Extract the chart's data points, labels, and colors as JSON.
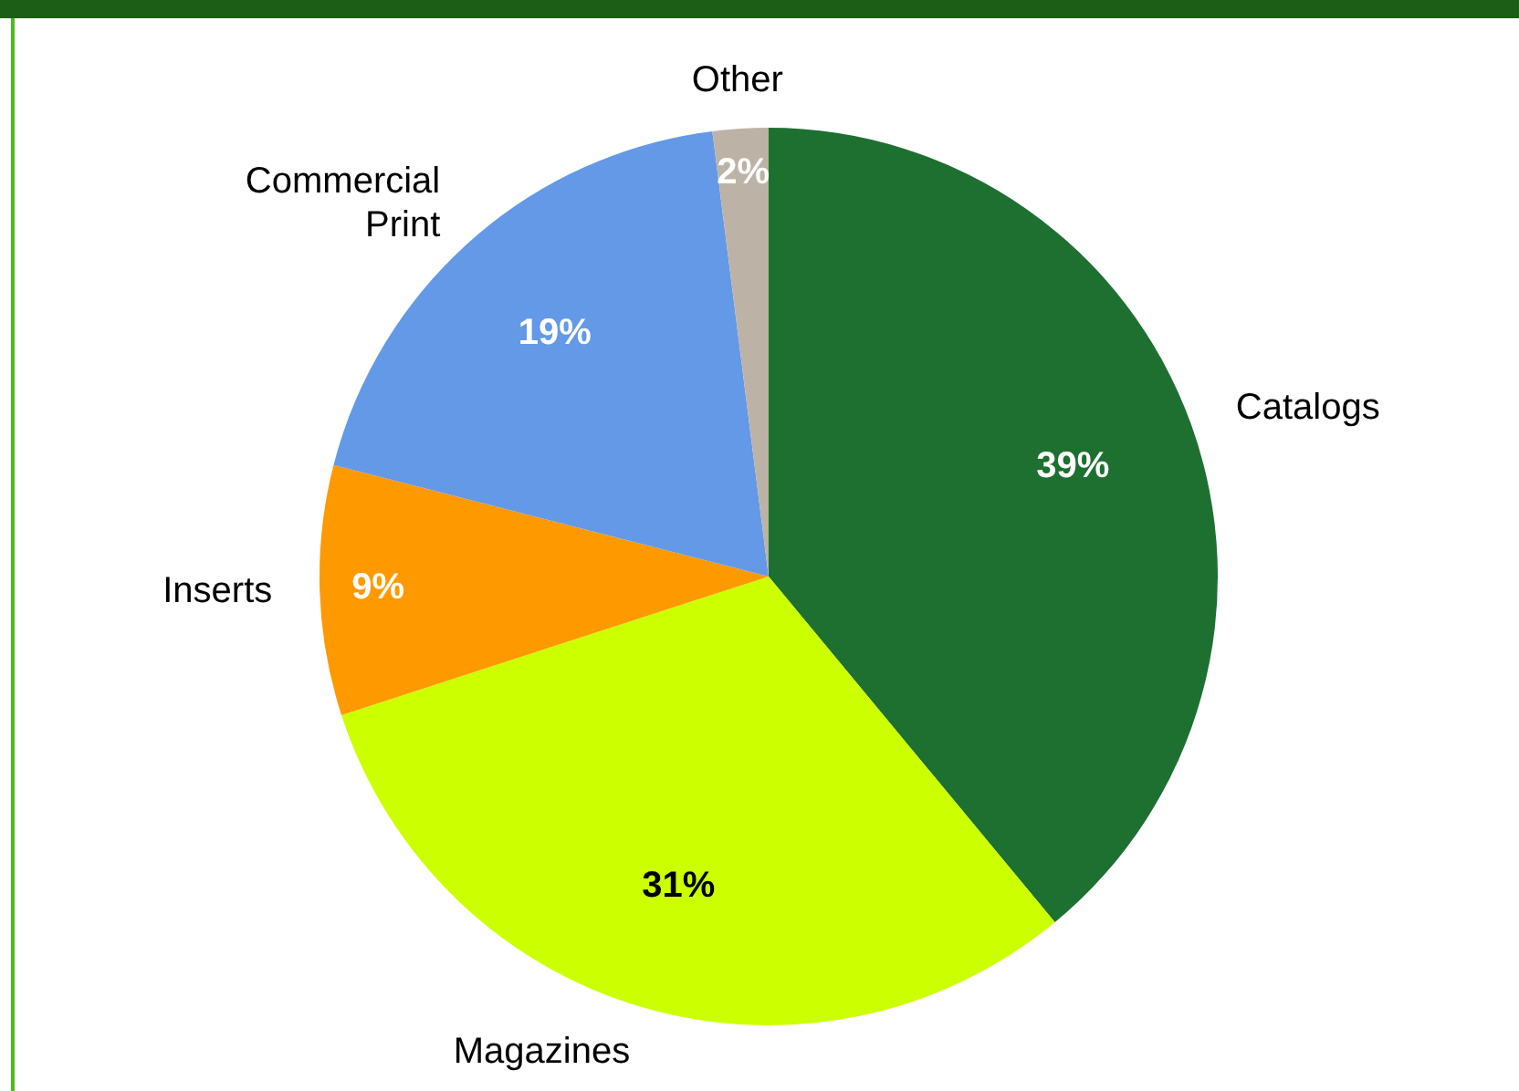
{
  "chart_data": {
    "type": "pie",
    "categories": [
      "Catalogs",
      "Magazines",
      "Inserts",
      "Commercial Print",
      "Other"
    ],
    "values": [
      39,
      31,
      9,
      19,
      2
    ],
    "colors": [
      "#1e7031",
      "#ccff00",
      "#ff9900",
      "#6399e6",
      "#bcb3a6"
    ],
    "value_labels": [
      "39%",
      "31%",
      "9%",
      "19%",
      "2%"
    ],
    "legend": false
  }
}
